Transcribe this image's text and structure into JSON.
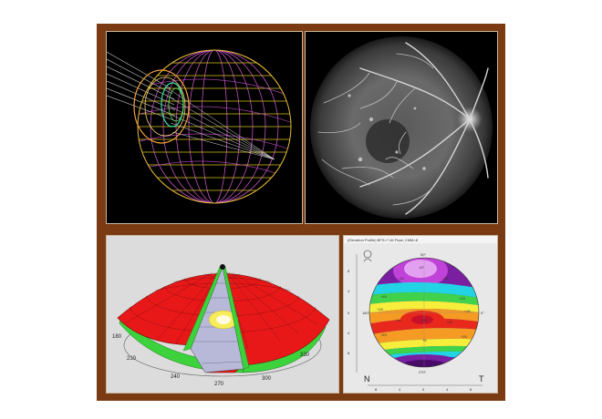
{
  "panels": {
    "wireframe": {
      "icon": "eye-wireframe-render"
    },
    "angiogram": {
      "icon": "retinal-angiogram"
    },
    "dome": {
      "tick_labels": [
        "180",
        "210",
        "240",
        "270",
        "300",
        "330"
      ]
    },
    "topography": {
      "header_text": "(Elevation Profile) BFS=7.46 Float, CMM=8",
      "direction_left": "N",
      "direction_right": "T",
      "angle_labels": [
        "90°",
        "270°",
        "180°",
        "0°"
      ],
      "contour_values": [
        "-67",
        "-42",
        "-25",
        "+15",
        "+13",
        "+19",
        "+20",
        "+14",
        "+32",
        "+18",
        "+19",
        "+5",
        "+24",
        "-43"
      ],
      "bottom_scale": [
        "8",
        "4",
        "0",
        "4",
        "8"
      ],
      "left_scale": [
        "8",
        "4",
        "0",
        "4",
        "8"
      ],
      "colors": {
        "purple": "#7a1fa2",
        "blue": "#2a55e8",
        "cyan": "#22d3e6",
        "green": "#3fd24a",
        "yellow": "#f6ee3a",
        "orange": "#f59a23",
        "red": "#e8281c"
      }
    }
  }
}
